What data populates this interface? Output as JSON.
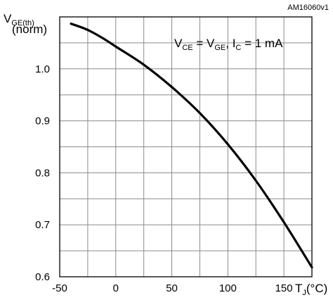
{
  "chart_data": {
    "type": "line",
    "reference_id": "AM16060v1",
    "ylabel": {
      "main": "V",
      "sub": "GE(th)",
      "second_line": "(norm)"
    },
    "xlabel": {
      "main": "T",
      "sub": "J",
      "unit": "(°C)"
    },
    "annotation": {
      "parts": [
        {
          "t": "V",
          "s": ""
        },
        {
          "t": "",
          "s": "CE"
        },
        {
          "t": " = V",
          "s": ""
        },
        {
          "t": "",
          "s": "GE"
        },
        {
          "t": ", I",
          "s": ""
        },
        {
          "t": "",
          "s": "C"
        },
        {
          "t": " = 1 mA",
          "s": ""
        }
      ]
    },
    "xlim": [
      -50,
      175
    ],
    "ylim": [
      0.6,
      1.1
    ],
    "x_ticks": [
      -50,
      0,
      50,
      100,
      150
    ],
    "x_tick_labels": [
      "-50",
      "0",
      "50",
      "100",
      "150"
    ],
    "x_minor_step": 25,
    "y_ticks": [
      0.6,
      0.7,
      0.8,
      0.9,
      1.0
    ],
    "y_tick_labels": [
      "0.6",
      "0.7",
      "0.8",
      "0.9",
      "1.0"
    ],
    "y_minor_step": 0.05,
    "grid": true,
    "series": [
      {
        "color": "#000000",
        "x": [
          -40,
          -25,
          -10,
          0,
          25,
          50,
          75,
          100,
          125,
          150,
          175
        ],
        "y": [
          1.087,
          1.075,
          1.057,
          1.043,
          1.008,
          0.965,
          0.915,
          0.855,
          0.785,
          0.705,
          0.618
        ]
      }
    ]
  }
}
